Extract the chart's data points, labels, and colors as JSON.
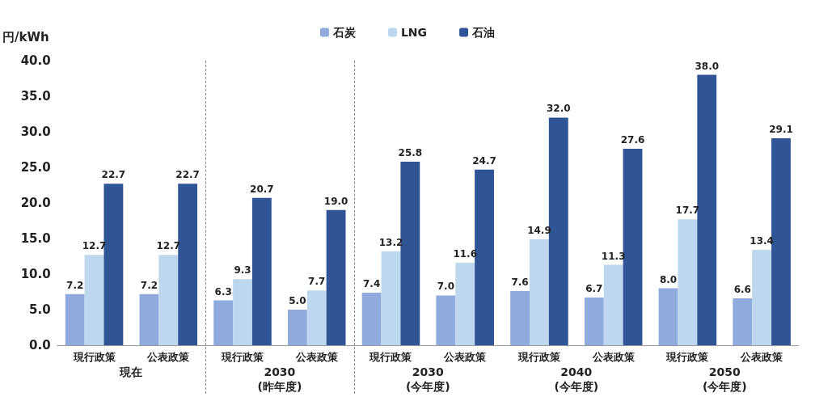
{
  "chart_data": {
    "type": "bar",
    "ylabel": "円/kWh",
    "categories": [
      "現行政策",
      "公表政策",
      "現行政策",
      "公表政策",
      "現行政策",
      "公表政策",
      "現行政策",
      "公表政策",
      "現行政策",
      "公表政策"
    ],
    "series": [
      {
        "name": "石炭",
        "color": "#8faadc",
        "values": [
          7.2,
          7.2,
          6.3,
          5.0,
          7.4,
          7.0,
          7.6,
          6.7,
          8.0,
          6.6
        ],
        "value_labels": [
          "7.2",
          "7.2",
          "6.3",
          "5.0",
          "7.4",
          "7.0",
          "7.6",
          "6.7",
          "8.0",
          "6.6"
        ]
      },
      {
        "name": "LNG",
        "color": "#bdd7ee",
        "values": [
          12.7,
          12.7,
          9.3,
          7.7,
          13.2,
          11.6,
          14.9,
          11.3,
          17.7,
          13.4
        ],
        "value_labels": [
          "12.7",
          "12.7",
          "9.3",
          "7.7",
          "13.2",
          "11.6",
          "14.9",
          "11.3",
          "17.7",
          "13.4"
        ]
      },
      {
        "name": "石油",
        "color": "#2f5597",
        "values": [
          22.7,
          22.7,
          20.7,
          19.0,
          25.8,
          24.7,
          32.0,
          27.6,
          38.0,
          29.1
        ],
        "value_labels": [
          "22.7",
          "22.7",
          "20.7",
          "19.0",
          "25.8",
          "24.7",
          "32.0",
          "27.6",
          "38.0",
          "29.1"
        ]
      }
    ],
    "ylim": [
      0,
      40
    ],
    "yticks": [
      {
        "value": 0,
        "label": "0.0"
      },
      {
        "value": 5,
        "label": "5.0"
      },
      {
        "value": 10,
        "label": "10.0"
      },
      {
        "value": 15,
        "label": "15.0"
      },
      {
        "value": 20,
        "label": "20.0"
      },
      {
        "value": 25,
        "label": "25.0"
      },
      {
        "value": 30,
        "label": "30.0"
      },
      {
        "value": 35,
        "label": "35.0"
      },
      {
        "value": 40,
        "label": "40.0"
      }
    ],
    "annotations": [
      "現在",
      "2030\n(昨年度)",
      "2030\n(今年度)",
      "2040\n(今年度)",
      "2050\n(今年度)"
    ],
    "grid": false,
    "legend": "top"
  }
}
